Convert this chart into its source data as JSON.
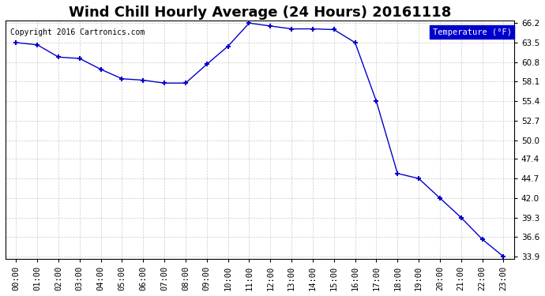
{
  "title": "Wind Chill Hourly Average (24 Hours) 20161118",
  "copyright": "Copyright 2016 Cartronics.com",
  "legend_label": "Temperature (°F)",
  "hours": [
    "00:00",
    "01:00",
    "02:00",
    "03:00",
    "04:00",
    "05:00",
    "06:00",
    "07:00",
    "08:00",
    "09:00",
    "10:00",
    "11:00",
    "12:00",
    "13:00",
    "14:00",
    "15:00",
    "16:00",
    "17:00",
    "18:00",
    "19:00",
    "20:00",
    "21:00",
    "22:00",
    "23:00"
  ],
  "values": [
    63.5,
    63.2,
    61.5,
    61.3,
    59.8,
    58.5,
    58.3,
    57.9,
    57.9,
    60.5,
    63.0,
    66.2,
    65.8,
    65.4,
    65.4,
    65.3,
    63.5,
    55.4,
    45.4,
    44.7,
    42.0,
    39.3,
    36.3,
    33.9
  ],
  "ylim_min": 33.9,
  "ylim_max": 66.2,
  "yticks": [
    33.9,
    36.6,
    39.3,
    42.0,
    44.7,
    47.4,
    50.0,
    52.7,
    55.4,
    58.1,
    60.8,
    63.5,
    66.2
  ],
  "line_color": "#0000cc",
  "marker": "+",
  "marker_size": 5,
  "bg_color": "#ffffff",
  "plot_bg": "#ffffff",
  "grid_color": "#cccccc",
  "title_fontsize": 13,
  "tick_fontsize": 7.5,
  "legend_bg": "#0000cc",
  "legend_fg": "#ffffff"
}
